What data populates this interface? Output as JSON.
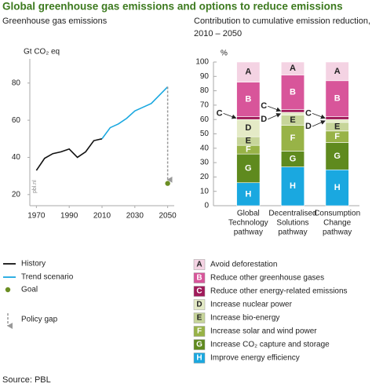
{
  "title": "Global greenhouse gas emissions and options to reduce emissions",
  "source": "Source: PBL",
  "chart_data": [
    {
      "type": "line",
      "title": "Greenhouse gas emissions",
      "y_label": "Gt CO₂ eq",
      "watermark": "pbl.nl",
      "xlim": [
        1966,
        2054
      ],
      "xticks": [
        1970,
        1990,
        2010,
        2030,
        2050
      ],
      "ylim": [
        14,
        93
      ],
      "yticks": [
        20,
        40,
        60,
        80
      ],
      "series": [
        {
          "name": "History",
          "style": "line",
          "color": "#111111",
          "x": [
            1970,
            1975,
            1980,
            1985,
            1990,
            1995,
            2000,
            2005,
            2010
          ],
          "values": [
            33,
            39.5,
            42,
            43,
            44.5,
            40,
            43,
            49,
            50
          ]
        },
        {
          "name": "Trend scenario",
          "style": "line",
          "color": "#1aa8e0",
          "x": [
            2010,
            2015,
            2020,
            2025,
            2030,
            2035,
            2040,
            2045,
            2050
          ],
          "values": [
            50,
            56,
            58,
            61,
            65,
            67,
            69,
            73.5,
            78
          ]
        },
        {
          "name": "Goal",
          "style": "point",
          "color": "#6b8e23",
          "x": [
            2050
          ],
          "values": [
            26
          ]
        },
        {
          "name": "Policy gap",
          "style": "arrow",
          "color": "#999999",
          "x": [
            2050,
            2050
          ],
          "values": [
            78,
            28
          ]
        }
      ]
    },
    {
      "type": "stacked_bar",
      "title": [
        "Contribution to cumulative emission reduction,",
        "2010 – 2050"
      ],
      "y_label": "%",
      "categories": [
        [
          "Global",
          "Technology",
          "pathway"
        ],
        [
          "Decentralised",
          "Solutions",
          "pathway"
        ],
        [
          "Consumption",
          "Change",
          "pathway"
        ]
      ],
      "ylim": [
        0,
        100
      ],
      "yticks": [
        0,
        10,
        20,
        30,
        40,
        50,
        60,
        70,
        80,
        90,
        100
      ],
      "series": [
        {
          "letter": "A",
          "name": "Avoid deforestation",
          "color": "#f4d3e3",
          "values": [
            14,
            9,
            13
          ]
        },
        {
          "letter": "B",
          "name": "Reduce other greenhouse gases",
          "color": "#d8559a",
          "values": [
            24,
            24,
            25
          ]
        },
        {
          "letter": "C",
          "name": "Reduce other energy-related emissions",
          "color": "#a01a5a",
          "values": [
            2,
            2,
            2
          ]
        },
        {
          "letter": "D",
          "name": "Increase nuclear power",
          "color": "#e4eac6",
          "values": [
            12,
            2,
            2
          ]
        },
        {
          "letter": "E",
          "name": "Increase bio-energy",
          "color": "#c7d59a",
          "values": [
            6,
            7,
            6
          ]
        },
        {
          "letter": "F",
          "name": "Increase solar and wind power",
          "color": "#98b347",
          "values": [
            6,
            18,
            8
          ]
        },
        {
          "letter": "G",
          "name": "Increase CO₂ capture and storage",
          "color": "#5f8a1e",
          "values": [
            20,
            11,
            19
          ]
        },
        {
          "letter": "H",
          "name": "Improve energy efficiency",
          "color": "#1aa8e0",
          "values": [
            16,
            27,
            25
          ]
        }
      ]
    }
  ]
}
